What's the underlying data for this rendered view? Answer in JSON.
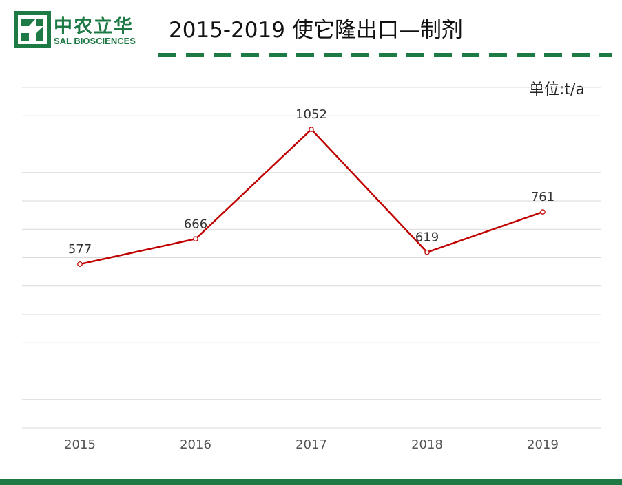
{
  "logo": {
    "name_cn": "中农立华",
    "name_en": "SAL BIOSCIENCES",
    "icon": "sal-cross-logo-icon"
  },
  "header": {
    "title": "2015-2019 使它隆出口—制剂"
  },
  "colors": {
    "brand_green": "#1e7a45",
    "series_red": "#c00000",
    "grid": "#d9d9d9"
  },
  "chart_data": {
    "type": "line",
    "unit_label": "单位:t/a",
    "categories": [
      "2015",
      "2016",
      "2017",
      "2018",
      "2019"
    ],
    "series": [
      {
        "values": [
          577,
          666,
          1052,
          619,
          761
        ]
      }
    ],
    "data_labels": [
      "577",
      "666",
      "1052",
      "619",
      "761"
    ],
    "ylim": [
      0,
      1200
    ],
    "grid": true,
    "legend": "none"
  }
}
